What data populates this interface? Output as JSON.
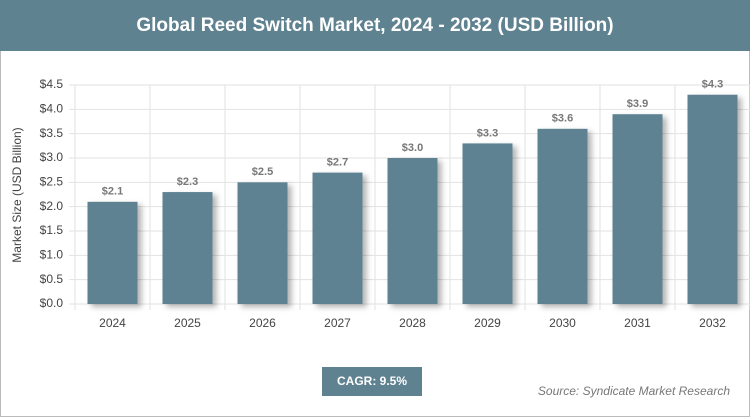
{
  "chart_data": {
    "type": "bar",
    "title": "Global Reed Switch Market, 2024 - 2032 (USD Billion)",
    "y_label": "Market Size (USD Billion)",
    "categories": [
      "2024",
      "2025",
      "2026",
      "2027",
      "2028",
      "2029",
      "2030",
      "2031",
      "2032"
    ],
    "values": [
      2.1,
      2.3,
      2.5,
      2.7,
      3.0,
      3.3,
      3.6,
      3.9,
      4.3
    ],
    "value_labels": [
      "$2.1",
      "$2.3",
      "$2.5",
      "$2.7",
      "$3.0",
      "$3.3",
      "$3.6",
      "$3.9",
      "$4.3"
    ],
    "color": "#5e8292",
    "ylim": [
      0,
      4.5
    ],
    "yticks": [
      {
        "value": 0,
        "label": "$0.0"
      },
      {
        "value": 0.5,
        "label": "$0.5"
      },
      {
        "value": 1,
        "label": "$1.0"
      },
      {
        "value": 1.5,
        "label": "$1.5"
      },
      {
        "value": 2,
        "label": "$2.0"
      },
      {
        "value": 2.5,
        "label": "$2.5"
      },
      {
        "value": 3,
        "label": "$3.0"
      },
      {
        "value": 3.5,
        "label": "$3.5"
      },
      {
        "value": 4,
        "label": "$4.0"
      },
      {
        "value": 4.5,
        "label": "$4.5"
      }
    ],
    "grid": true,
    "cagr": "CAGR: 9.5%",
    "source": "Source: Syndicate Market Research"
  }
}
